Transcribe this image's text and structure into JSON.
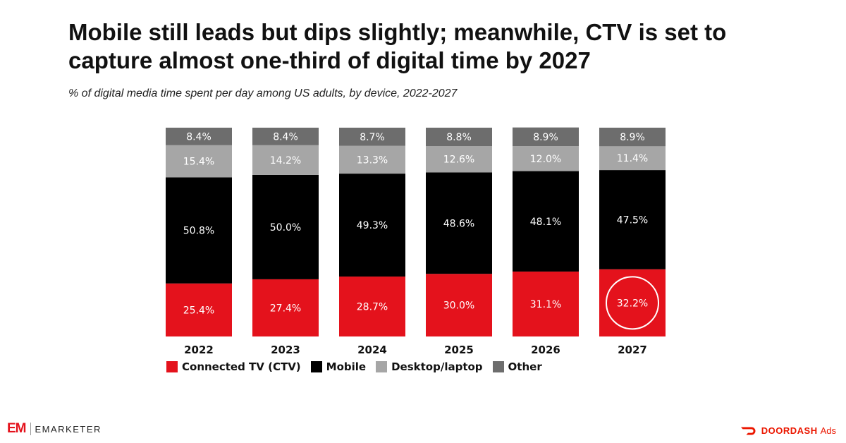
{
  "header": {
    "title": "Mobile still leads but dips slightly; meanwhile, CTV is set to capture almost one-third of digital time by 2027",
    "subtitle": "% of digital media time spent per day among US adults, by device, 2022-2027"
  },
  "chart_data": {
    "type": "bar",
    "stacked": true,
    "title": "Mobile still leads but dips slightly; meanwhile, CTV is set to capture almost one-third of digital time by 2027",
    "subtitle": "% of digital media time spent per day among US adults, by device, 2022-2027",
    "xlabel": "",
    "ylabel": "",
    "categories": [
      "2022",
      "2023",
      "2024",
      "2025",
      "2026",
      "2027"
    ],
    "series": [
      {
        "name": "Connected TV (CTV)",
        "color": "#e4121c",
        "text_color": "#ffffff",
        "values": [
          25.4,
          27.4,
          28.7,
          30.0,
          31.1,
          32.2
        ],
        "labels": [
          "25.4%",
          "27.4%",
          "28.7%",
          "30.0%",
          "31.1%",
          "32.2%"
        ]
      },
      {
        "name": "Mobile",
        "color": "#000000",
        "text_color": "#ffffff",
        "values": [
          50.8,
          50.0,
          49.3,
          48.6,
          48.1,
          47.5
        ],
        "labels": [
          "50.8%",
          "50.0%",
          "49.3%",
          "48.6%",
          "48.1%",
          "47.5%"
        ]
      },
      {
        "name": "Desktop/laptop",
        "color": "#a6a6a6",
        "text_color": "#ffffff",
        "values": [
          15.4,
          14.2,
          13.3,
          12.6,
          12.0,
          11.4
        ],
        "labels": [
          "15.4%",
          "14.2%",
          "13.3%",
          "12.6%",
          "12.0%",
          "11.4%"
        ]
      },
      {
        "name": "Other",
        "color": "#6d6d6d",
        "text_color": "#ffffff",
        "values": [
          8.4,
          8.4,
          8.7,
          8.8,
          8.9,
          8.9
        ],
        "labels": [
          "8.4%",
          "8.4%",
          "8.7%",
          "8.8%",
          "8.9%",
          "8.9%"
        ]
      }
    ],
    "highlight": {
      "series": "Connected TV (CTV)",
      "category": "2027",
      "style": "circle"
    },
    "ylim": [
      0,
      100
    ],
    "grid": false,
    "legend": "bottom-left"
  },
  "footer": {
    "left_brand_mark": "EM",
    "left_brand_name": "EMARKETER",
    "right_brand_name": "DOORDASH",
    "right_brand_suffix": "Ads",
    "right_brand_icon": "doordash-dash-icon",
    "right_brand_color": "#eb1700"
  }
}
